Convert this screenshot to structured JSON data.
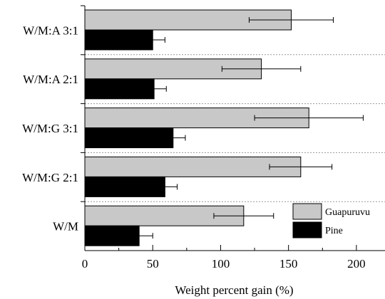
{
  "chart_data": {
    "type": "bar",
    "orientation": "horizontal",
    "categories": [
      "W/M:A 3:1",
      "W/M:A 2:1",
      "W/M:G 3:1",
      "W/M:G 2:1",
      "W/M"
    ],
    "series": [
      {
        "name": "Guapuruvu",
        "color": "#c8c8c8",
        "values": [
          152,
          130,
          165,
          159,
          117
        ],
        "errors": [
          31,
          29,
          40,
          23,
          22
        ]
      },
      {
        "name": "Pine",
        "color": "#000000",
        "values": [
          50,
          51,
          65,
          59,
          40
        ],
        "errors": [
          9,
          9,
          9,
          9,
          10
        ]
      }
    ],
    "xlabel": "Weight percent gain (%)",
    "ylabel": "",
    "title": "",
    "xlim": [
      0,
      220
    ],
    "xticks": [
      "0",
      "50",
      "100",
      "150",
      "200"
    ],
    "xtick_values": [
      0,
      50,
      100,
      150,
      200
    ],
    "legend_position": "bottom-right",
    "grid": false,
    "group_separators": "dotted"
  }
}
